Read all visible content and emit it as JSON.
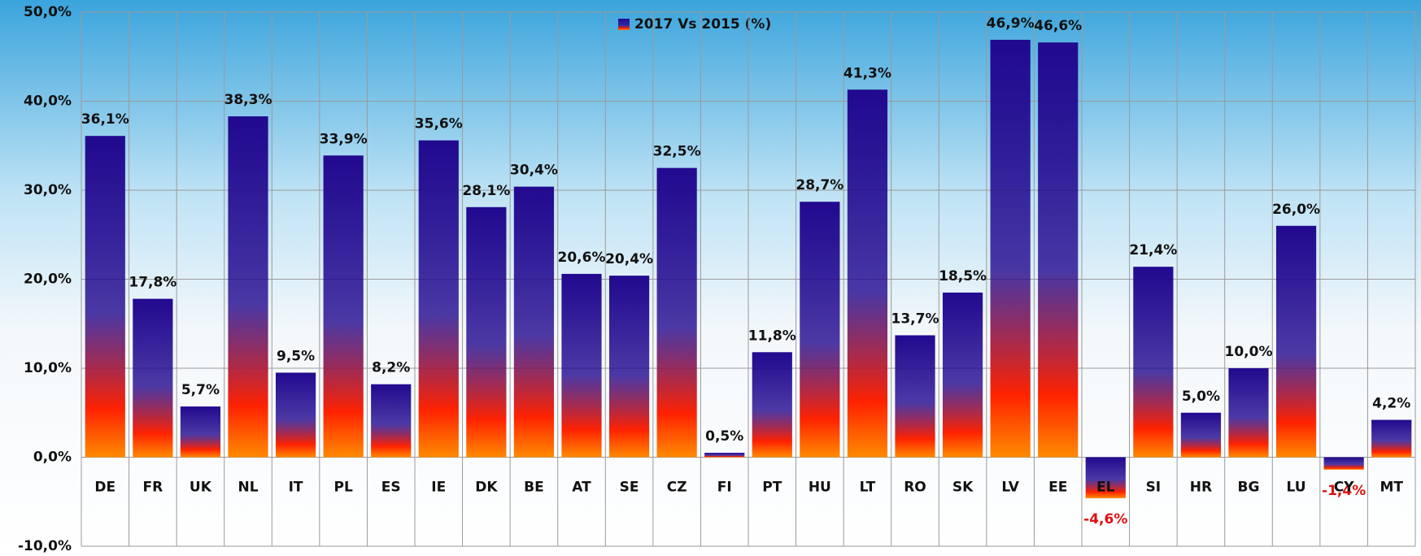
{
  "chart_data": {
    "type": "bar",
    "categories": [
      "DE",
      "FR",
      "UK",
      "NL",
      "IT",
      "PL",
      "ES",
      "IE",
      "DK",
      "BE",
      "AT",
      "SE",
      "CZ",
      "FI",
      "PT",
      "HU",
      "LT",
      "RO",
      "SK",
      "LV",
      "EE",
      "EL",
      "SI",
      "HR",
      "BG",
      "LU",
      "CY",
      "MT"
    ],
    "series": [
      {
        "name": "2017 Vs 2015 (%)",
        "color": "#22098f",
        "gradient_to": "#ff2200",
        "values": [
          36.1,
          17.8,
          5.7,
          38.3,
          9.5,
          33.9,
          8.2,
          35.6,
          28.1,
          30.4,
          20.6,
          20.4,
          32.5,
          0.5,
          11.8,
          28.7,
          41.3,
          13.7,
          18.5,
          46.9,
          46.6,
          -4.6,
          21.4,
          5.0,
          10.0,
          26.0,
          -1.4,
          4.2
        ],
        "value_labels": [
          "36,1%",
          "17,8%",
          "5,7%",
          "38,3%",
          "9,5%",
          "33,9%",
          "8,2%",
          "35,6%",
          "28,1%",
          "30,4%",
          "20,6%",
          "20,4%",
          "32,5%",
          "0,5%",
          "11,8%",
          "28,7%",
          "41,3%",
          "13,7%",
          "18,5%",
          "46,9%",
          "46,6%",
          "-4,6%",
          "21,4%",
          "5,0%",
          "10,0%",
          "26,0%",
          "-1,4%",
          "4,2%"
        ]
      }
    ],
    "ylim": [
      -10,
      50
    ],
    "yticks": [
      {
        "value": -10,
        "label": "-10,0%"
      },
      {
        "value": 0,
        "label": "0,0%"
      },
      {
        "value": 10,
        "label": "10,0%"
      },
      {
        "value": 20,
        "label": "20,0%"
      },
      {
        "value": 30,
        "label": "30,0%"
      },
      {
        "value": 40,
        "label": "40,0%"
      },
      {
        "value": 50,
        "label": "50,0%"
      }
    ],
    "grid": true,
    "legend": "top"
  }
}
